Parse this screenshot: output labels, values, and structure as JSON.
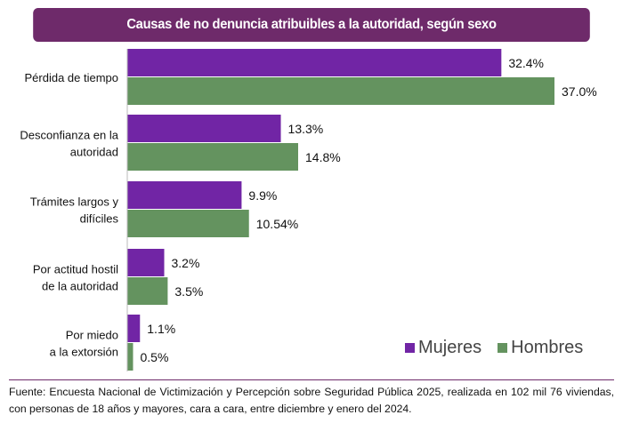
{
  "chart_data": {
    "type": "bar",
    "orientation": "horizontal",
    "title": "Causas de no denuncia atribuibles a la autoridad, según sexo",
    "categories": [
      [
        "Pérdida de tiempo"
      ],
      [
        "Desconfianza en la",
        "autoridad"
      ],
      [
        "Trámites largos y",
        "difíciles"
      ],
      [
        "Por actitud hostil",
        "de la autoridad"
      ],
      [
        "Por miedo",
        "a la extorsión"
      ]
    ],
    "series": [
      {
        "name": "Mujeres",
        "color": "#7125a5",
        "values": [
          32.4,
          13.3,
          9.9,
          3.2,
          1.1
        ],
        "labels": [
          "32.4%",
          "13.3%",
          "9.9%",
          "3.2%",
          "1.1%"
        ]
      },
      {
        "name": "Hombres",
        "color": "#64935f",
        "values": [
          37.0,
          14.8,
          10.54,
          3.5,
          0.5
        ],
        "labels": [
          "37.0%",
          "14.8%",
          "10.54%",
          "3.5%",
          "0.5%"
        ]
      }
    ],
    "legend_position": "bottom-right",
    "grid": false
  },
  "footer": "Fuente: Encuesta Nacional de Victimización y Percepción sobre Seguridad Pública 2025, realizada en 102 mil 76 viviendas, con personas de 18 años y mayores, cara a cara, entre diciembre y enero del 2024."
}
